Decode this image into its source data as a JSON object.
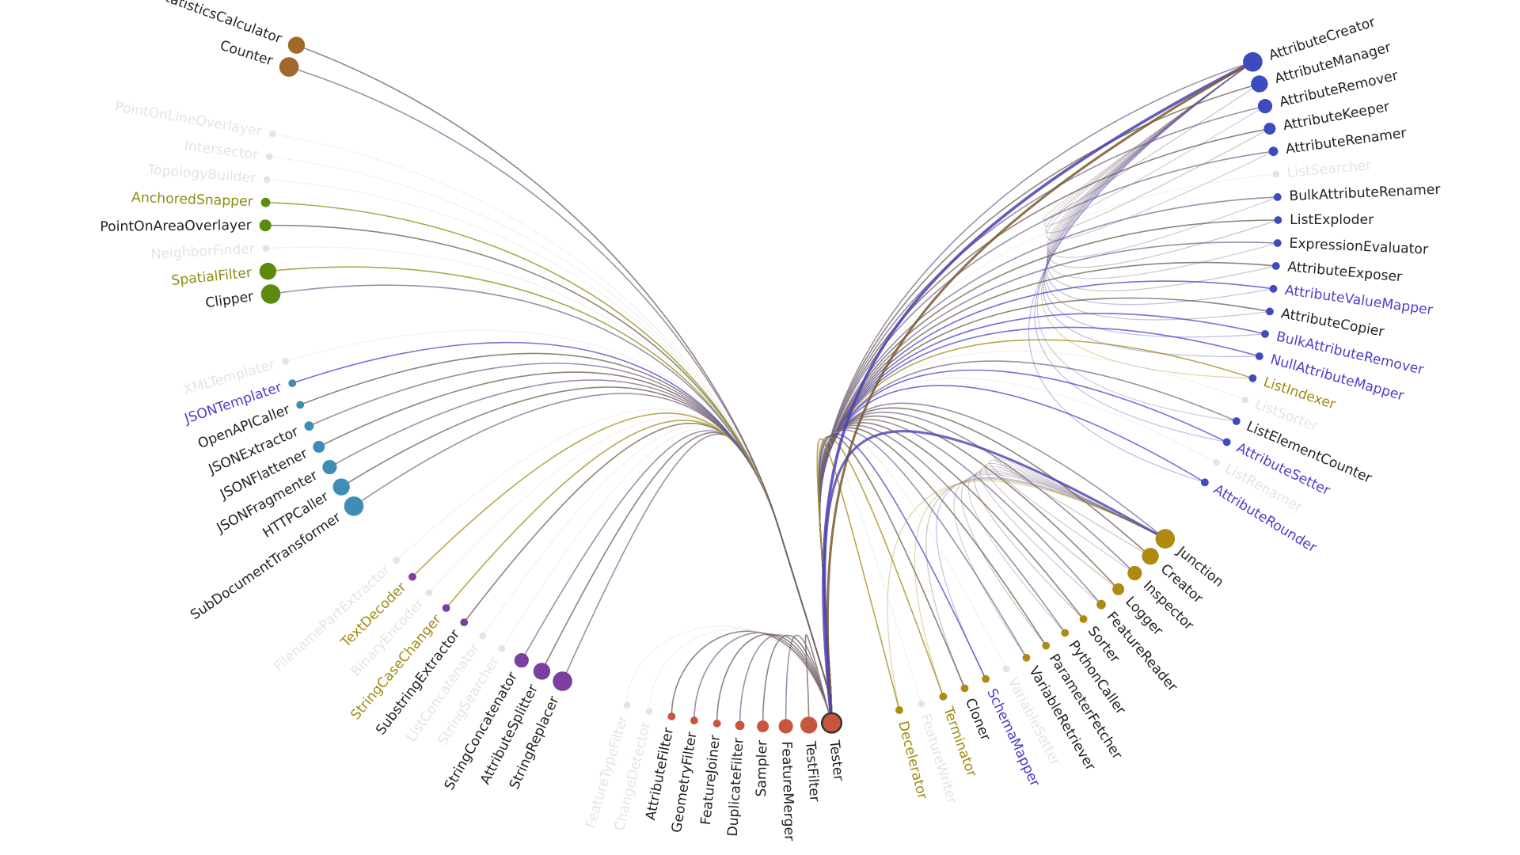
{
  "groups": [
    {
      "color": "#3d4bbd",
      "nodes": [
        {
          "label": "AttributeCreator",
          "label_color": "#222222"
        },
        {
          "label": "AttributeManager",
          "label_color": "#222222"
        },
        {
          "label": "AttributeRemover",
          "label_color": "#222222"
        },
        {
          "label": "AttributeKeeper",
          "label_color": "#222222"
        },
        {
          "label": "AttributeRenamer",
          "label_color": "#222222"
        },
        {
          "label": "ListSearcher",
          "label_color": "#e4e4e4"
        },
        {
          "label": "BulkAttributeRenamer",
          "label_color": "#222222"
        },
        {
          "label": "ListExploder",
          "label_color": "#222222"
        },
        {
          "label": "ExpressionEvaluator",
          "label_color": "#222222"
        },
        {
          "label": "AttributeExposer",
          "label_color": "#222222"
        },
        {
          "label": "AttributeValueMapper",
          "label_color": "#4b3fc8"
        },
        {
          "label": "AttributeCopier",
          "label_color": "#222222"
        },
        {
          "label": "BulkAttributeRemover",
          "label_color": "#4b3fc8"
        },
        {
          "label": "NullAttributeMapper",
          "label_color": "#4b3fc8"
        },
        {
          "label": "ListIndexer",
          "label_color": "#a08a10"
        },
        {
          "label": "ListSorter",
          "label_color": "#e4e4e4"
        },
        {
          "label": "ListElementCounter",
          "label_color": "#222222"
        },
        {
          "label": "AttributeSetter",
          "label_color": "#4b3fc8"
        },
        {
          "label": "ListRenamer",
          "label_color": "#e4e4e4"
        },
        {
          "label": "AttributeRounder",
          "label_color": "#4b3fc8"
        }
      ]
    },
    {
      "color": "#b08a10",
      "nodes": [
        {
          "label": "Junction",
          "label_color": "#222222"
        },
        {
          "label": "Creator",
          "label_color": "#222222"
        },
        {
          "label": "Inspector",
          "label_color": "#222222"
        },
        {
          "label": "Logger",
          "label_color": "#222222"
        },
        {
          "label": "FeatureReader",
          "label_color": "#222222"
        },
        {
          "label": "Sorter",
          "label_color": "#222222"
        },
        {
          "label": "PythonCaller",
          "label_color": "#222222"
        },
        {
          "label": "ParameterFetcher",
          "label_color": "#222222"
        },
        {
          "label": "VariableRetriever",
          "label_color": "#222222"
        },
        {
          "label": "VariableSetter",
          "label_color": "#e4e4e4"
        },
        {
          "label": "SchemaMapper",
          "label_color": "#4b3fc8"
        },
        {
          "label": "Cloner",
          "label_color": "#222222"
        },
        {
          "label": "Terminator",
          "label_color": "#a08a10"
        },
        {
          "label": "FeatureWriter",
          "label_color": "#e4e4e4"
        },
        {
          "label": "Decelerator",
          "label_color": "#a08a10"
        }
      ]
    },
    {
      "color": "#c8553d",
      "nodes": [
        {
          "label": "Tester",
          "label_color": "#222222"
        },
        {
          "label": "TestFilter",
          "label_color": "#222222"
        },
        {
          "label": "FeatureMerger",
          "label_color": "#222222"
        },
        {
          "label": "Sampler",
          "label_color": "#222222"
        },
        {
          "label": "DuplicateFilter",
          "label_color": "#222222"
        },
        {
          "label": "FeatureJoiner",
          "label_color": "#222222"
        },
        {
          "label": "GeometryFilter",
          "label_color": "#222222"
        },
        {
          "label": "AttributeFilter",
          "label_color": "#222222"
        },
        {
          "label": "ChangeDetector",
          "label_color": "#e4e4e4"
        },
        {
          "label": "FeatureTypeFilter",
          "label_color": "#e4e4e4"
        }
      ]
    },
    {
      "color": "#7b3fa0",
      "nodes": [
        {
          "label": "StringReplacer",
          "label_color": "#222222"
        },
        {
          "label": "AttributeSplitter",
          "label_color": "#222222"
        },
        {
          "label": "StringConcatenator",
          "label_color": "#222222"
        },
        {
          "label": "StringSearcher",
          "label_color": "#e4e4e4"
        },
        {
          "label": "ListConcatenator",
          "label_color": "#e4e4e4"
        },
        {
          "label": "SubstringExtractor",
          "label_color": "#222222"
        },
        {
          "label": "StringCaseChanger",
          "label_color": "#a08a10"
        },
        {
          "label": "BinaryEncoder",
          "label_color": "#e4e4e4"
        },
        {
          "label": "TextDecoder",
          "label_color": "#a08a10"
        },
        {
          "label": "FilenamePartExtractor",
          "label_color": "#e4e4e4"
        }
      ]
    },
    {
      "color": "#3f8db5",
      "nodes": [
        {
          "label": "SubDocumentTransformer",
          "label_color": "#222222"
        },
        {
          "label": "HTTPCaller",
          "label_color": "#222222"
        },
        {
          "label": "JSONFragmenter",
          "label_color": "#222222"
        },
        {
          "label": "JSONFlattener",
          "label_color": "#222222"
        },
        {
          "label": "JSONExtractor",
          "label_color": "#222222"
        },
        {
          "label": "OpenAPICaller",
          "label_color": "#222222"
        },
        {
          "label": "JSONTemplater",
          "label_color": "#4b3fc8"
        },
        {
          "label": "XMLTemplater",
          "label_color": "#e4e4e4"
        }
      ]
    },
    {
      "color": "#5a8a10",
      "nodes": [
        {
          "label": "Clipper",
          "label_color": "#222222"
        },
        {
          "label": "SpatialFilter",
          "label_color": "#8c8c14"
        },
        {
          "label": "NeighborFinder",
          "label_color": "#e4e4e4"
        },
        {
          "label": "PointOnAreaOverlayer",
          "label_color": "#222222"
        },
        {
          "label": "AnchoredSnapper",
          "label_color": "#8c8c14"
        },
        {
          "label": "TopologyBuilder",
          "label_color": "#e4e4e4"
        },
        {
          "label": "Intersector",
          "label_color": "#e4e4e4"
        },
        {
          "label": "PointOnLineOverlayer",
          "label_color": "#e4e4e4"
        }
      ]
    },
    {
      "color": "#a0682a",
      "nodes": [
        {
          "label": "Counter",
          "label_color": "#222222"
        },
        {
          "label": "StatisticsCalculator",
          "label_color": "#222222"
        }
      ]
    }
  ]
}
